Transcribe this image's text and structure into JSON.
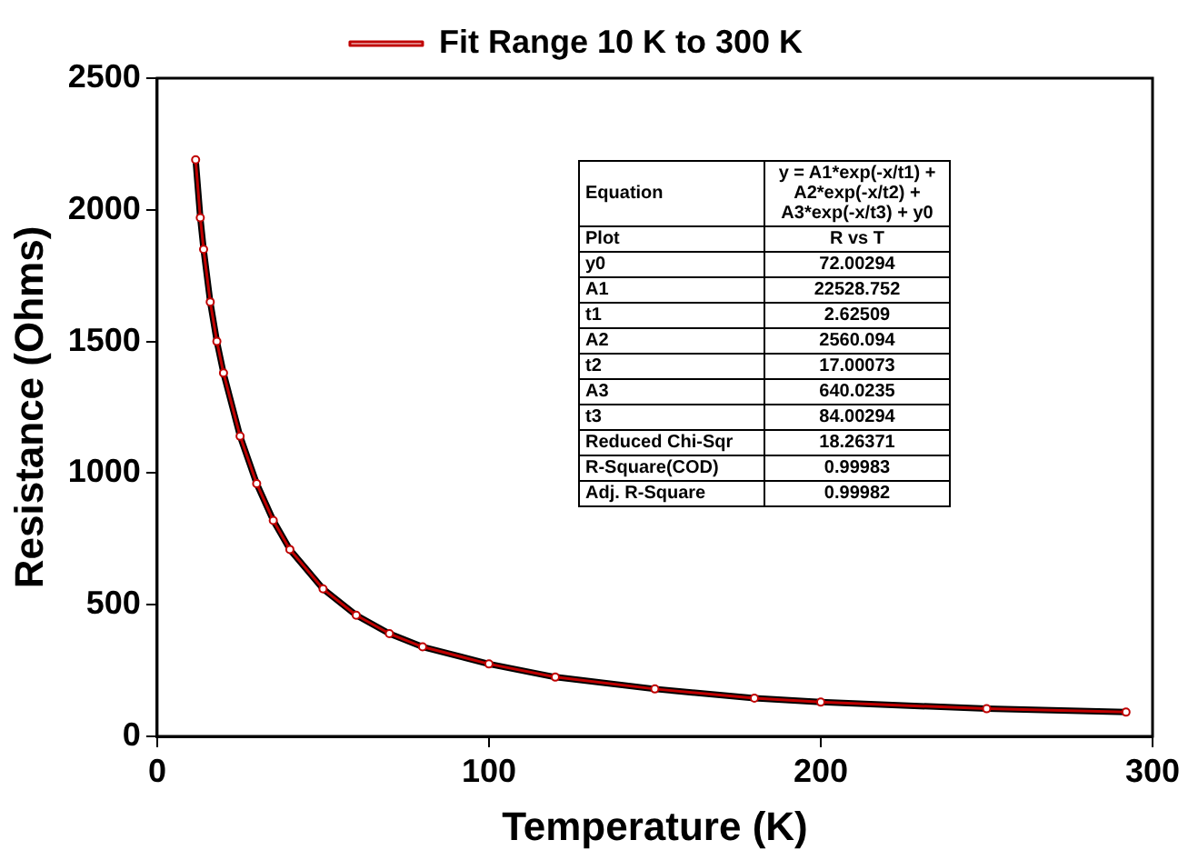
{
  "chart_data": {
    "type": "line",
    "xlabel": "Temperature (K)",
    "ylabel": "Resistance (Ohms)",
    "xlim": [
      0,
      300
    ],
    "xticks": [
      0,
      100,
      200,
      300
    ],
    "ylim": [
      0,
      2500
    ],
    "yticks": [
      0,
      500,
      1000,
      1500,
      2000,
      2500
    ],
    "grid": false,
    "legend": "top",
    "x": [
      11.6,
      13,
      14,
      16,
      18,
      20,
      25,
      30,
      35,
      40,
      50,
      60,
      70,
      80,
      100,
      120,
      150,
      180,
      200,
      250,
      292
    ],
    "series": [
      {
        "color": "#000000",
        "values": [
          2190,
          1970,
          1850,
          1650,
          1500,
          1380,
          1140,
          960,
          820,
          710,
          560,
          460,
          390,
          340,
          275,
          225,
          180,
          145,
          130,
          105,
          92
        ]
      },
      {
        "name": "Fit Range 10 K to 300 K",
        "color": "#c00000",
        "marker": "circle",
        "values": [
          2190,
          1970,
          1850,
          1650,
          1500,
          1380,
          1140,
          960,
          820,
          710,
          560,
          460,
          390,
          340,
          275,
          225,
          180,
          145,
          130,
          105,
          92
        ]
      }
    ],
    "annotations": [
      "Equation",
      "y = A1*exp(-x/t1) + A2*exp(-x/t2) + A3*exp(-x/t3) + y0",
      "Plot",
      "R vs T",
      "y0",
      "72.00294",
      "A1",
      "22528.752",
      "t1",
      "2.62509",
      "A2",
      "2560.094",
      "t2",
      "17.00073",
      "A3",
      "640.0235",
      "t3",
      "84.00294",
      "Reduced Chi-Sqr",
      "18.26371",
      "R-Square(COD)",
      "0.99983",
      "Adj. R-Square",
      "0.99982"
    ]
  }
}
